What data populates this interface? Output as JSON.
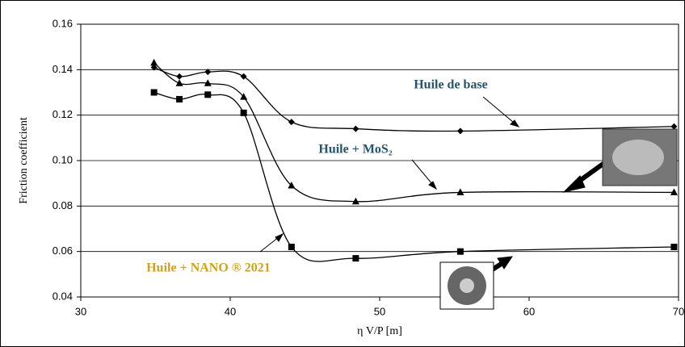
{
  "chart_data": {
    "type": "line",
    "xlabel": "η V/P  [m]",
    "ylabel": "Friction coefficient",
    "xlim": [
      30,
      70
    ],
    "xticks": [
      30,
      40,
      50,
      60,
      70
    ],
    "ylim": [
      0.04,
      0.16
    ],
    "yticks": [
      0.04,
      0.06,
      0.08,
      {
        "value": 0.1,
        "label": "0.10"
      },
      0.12,
      0.14,
      0.16
    ],
    "grid": true,
    "series": [
      {
        "name": "Huile de base",
        "color": "#24546e",
        "marker": "diamond",
        "x": [
          34.9,
          36.6,
          38.5,
          40.9,
          44.1,
          48.4,
          55.4,
          69.7
        ],
        "values": [
          0.141,
          0.137,
          0.139,
          0.137,
          0.117,
          0.114,
          0.113,
          0.115
        ]
      },
      {
        "name": "Huile + MoS₂",
        "color": "#24546e",
        "marker": "triangle",
        "x": [
          34.9,
          36.6,
          38.5,
          40.9,
          44.1,
          48.4,
          55.4,
          69.7
        ],
        "values": [
          0.143,
          0.134,
          0.134,
          0.128,
          0.089,
          0.082,
          0.086,
          0.086
        ]
      },
      {
        "name": "Huile + NANO ® 2021",
        "color": "#d4a017",
        "marker": "square",
        "x": [
          34.9,
          36.6,
          38.5,
          40.9,
          44.1,
          48.4,
          55.4,
          69.7
        ],
        "values": [
          0.13,
          0.127,
          0.129,
          0.121,
          0.062,
          0.057,
          0.06,
          0.062
        ]
      }
    ]
  }
}
